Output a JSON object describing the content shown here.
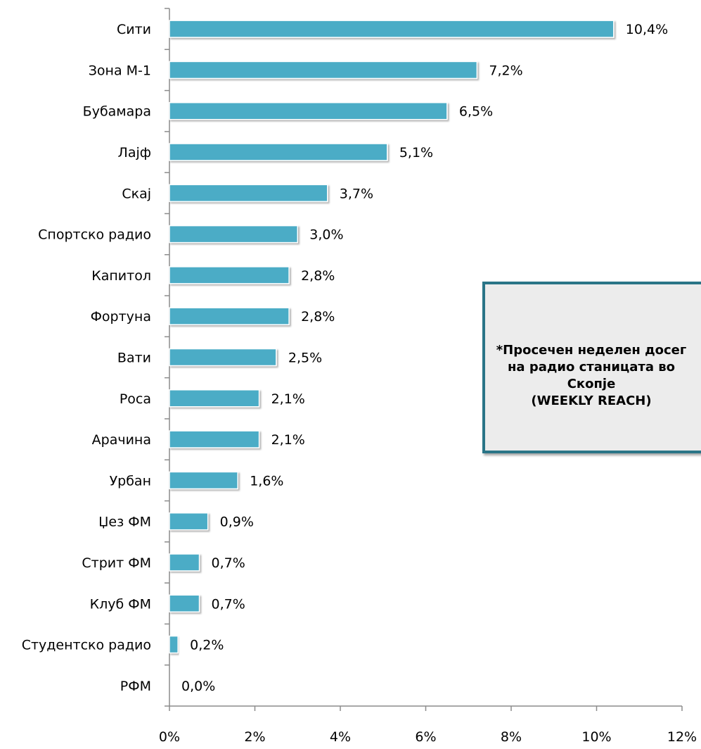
{
  "chart_data": {
    "type": "bar",
    "orientation": "horizontal",
    "categories": [
      "Сити",
      "Зона М-1",
      "Бубамара",
      "Лајф",
      "Скај",
      "Спортско радио",
      "Капитол",
      "Фортуна",
      "Вати",
      "Роса",
      "Арачина",
      "Урбан",
      "Џез ФМ",
      "Стрит ФМ",
      "Клуб ФМ",
      "Студентско радио",
      "РФМ"
    ],
    "values": [
      10.4,
      7.2,
      6.5,
      5.1,
      3.7,
      3.0,
      2.8,
      2.8,
      2.5,
      2.1,
      2.1,
      1.6,
      0.9,
      0.7,
      0.7,
      0.2,
      0.0
    ],
    "data_labels": [
      "10,4%",
      "7,2%",
      "6,5%",
      "5,1%",
      "3,7%",
      "3,0%",
      "2,8%",
      "2,8%",
      "2,5%",
      "2,1%",
      "2,1%",
      "1,6%",
      "0,9%",
      "0,7%",
      "0,7%",
      "0,2%",
      "0,0%"
    ],
    "x_ticks": [
      0,
      2,
      4,
      6,
      8,
      10,
      12
    ],
    "x_tick_labels": [
      "0%",
      "2%",
      "4%",
      "6%",
      "8%",
      "10%",
      "12%"
    ],
    "xlim": [
      0,
      12
    ],
    "grid": false,
    "legend": "none",
    "title": "",
    "xlabel": "",
    "ylabel": "",
    "colors": {
      "bar": "#4bacc6",
      "bar_edge": "#3b94ac",
      "axis": "#8c8c8c",
      "note_border": "#2a7587",
      "note_fill": "#ececec"
    }
  },
  "note": {
    "line1": "*Просечен неделен досег",
    "line2": "на радио станицата во",
    "line3": "Скопје",
    "line4": "(WEEKLY REACH)"
  }
}
